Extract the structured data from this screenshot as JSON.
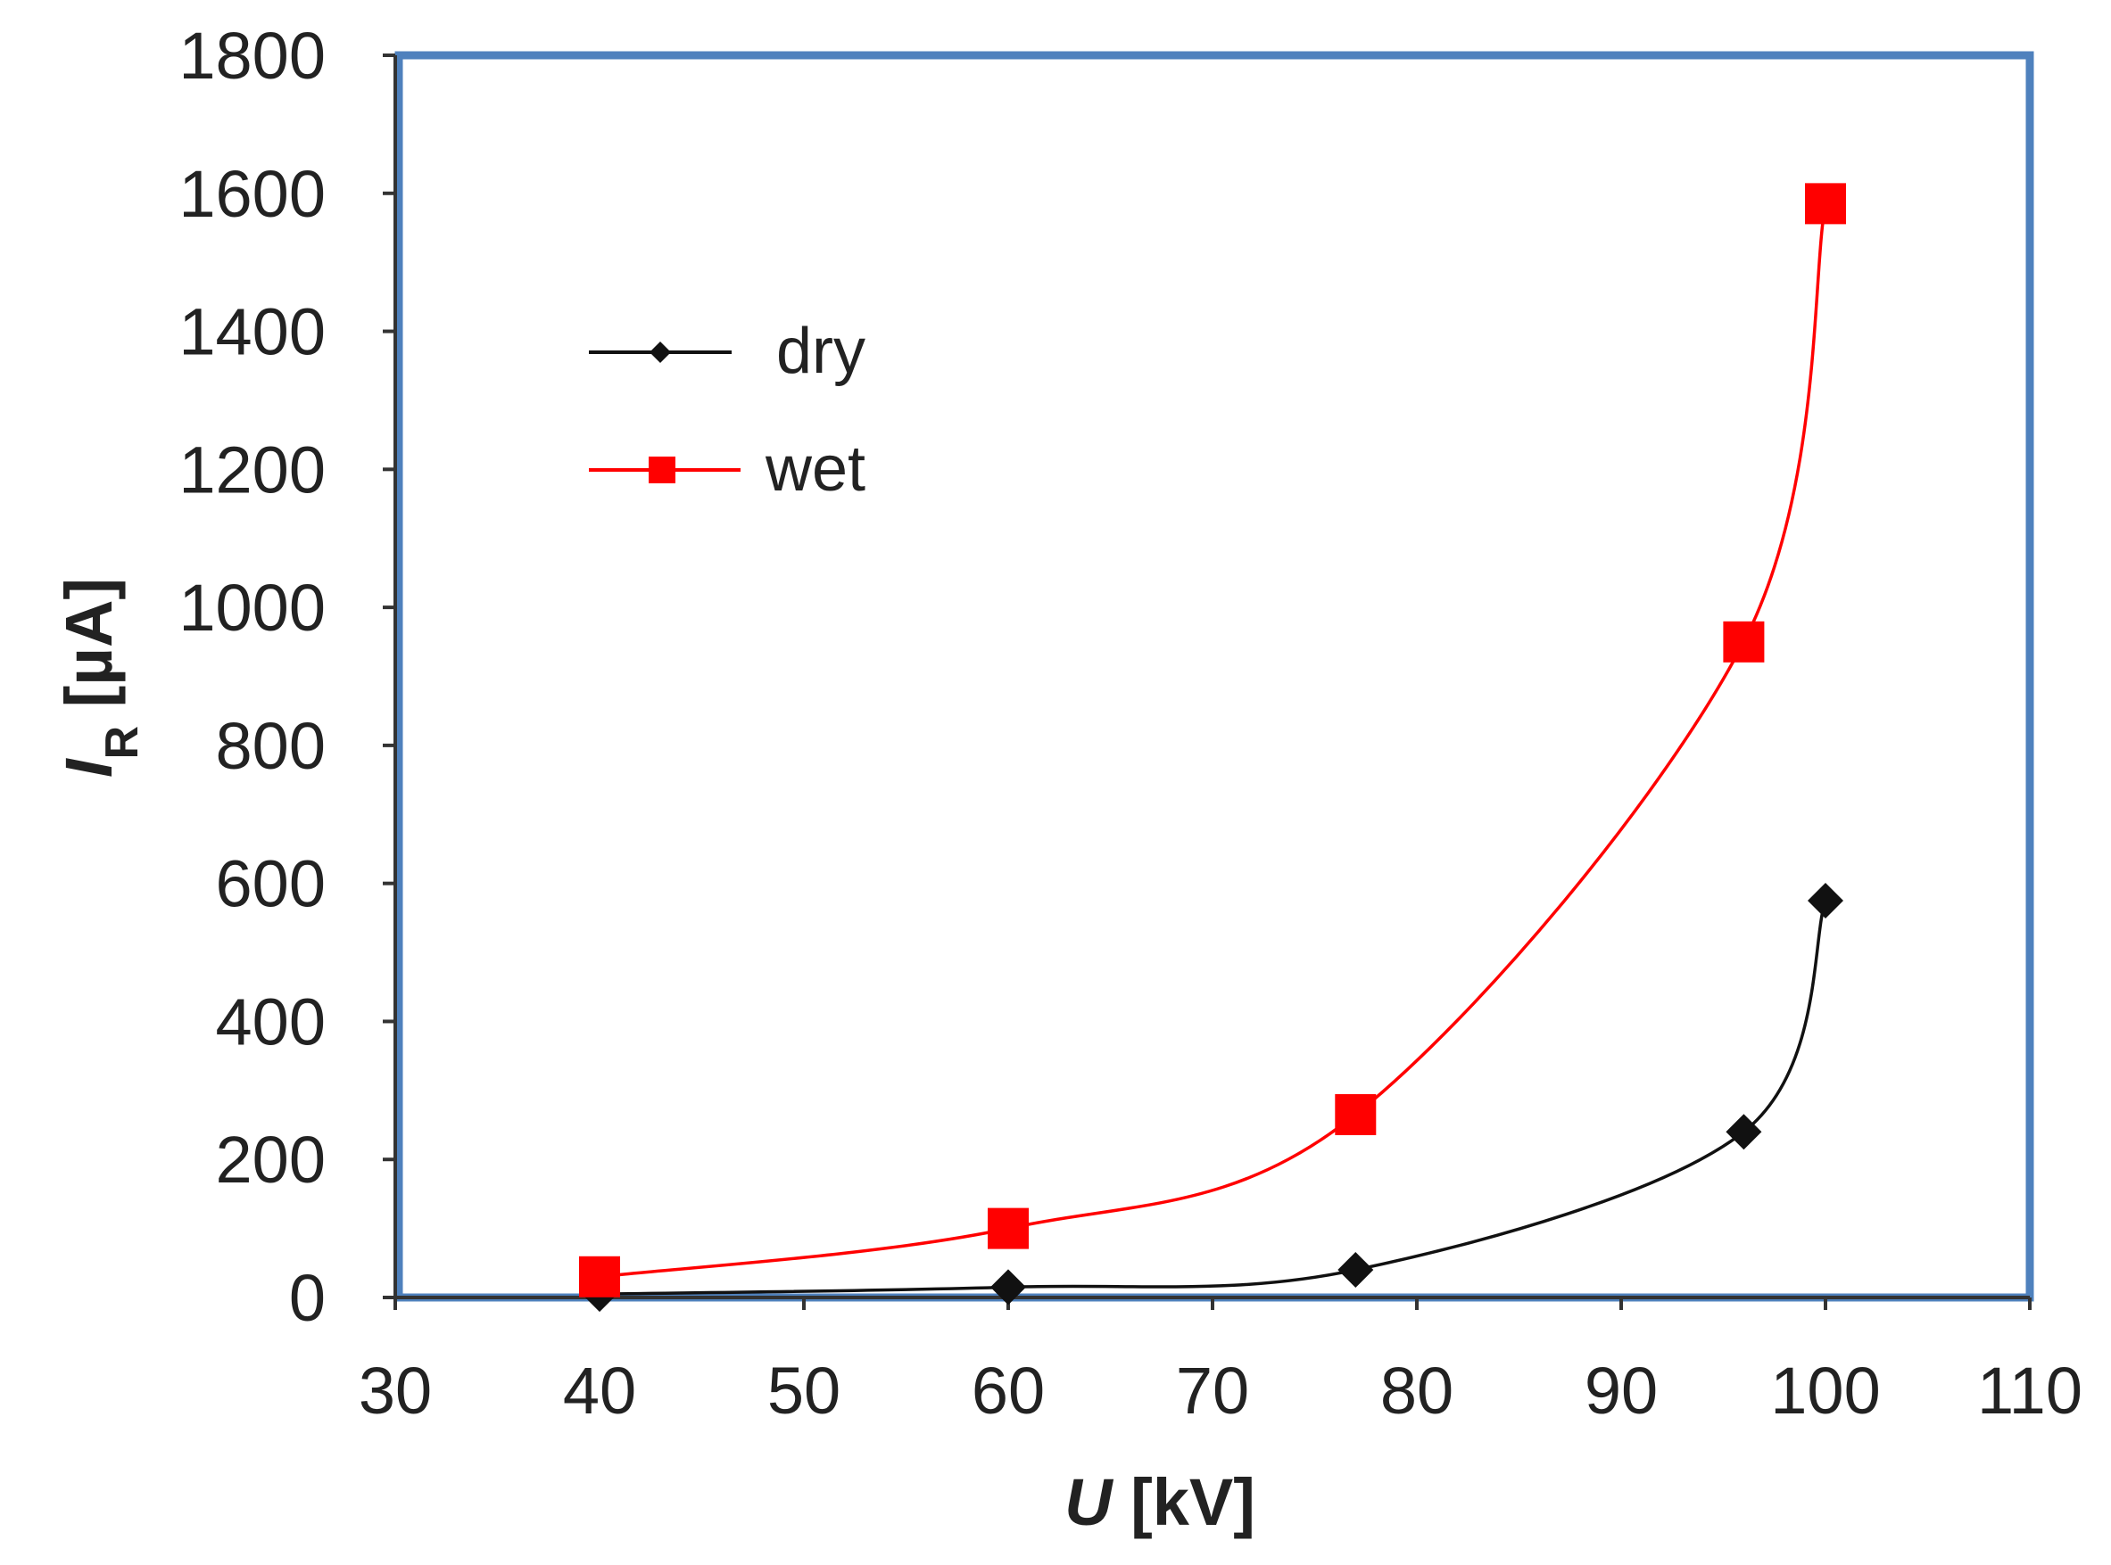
{
  "chart_data": {
    "type": "line",
    "title": "",
    "xlabel": {
      "symbol": "U",
      "unit": " [kV]"
    },
    "ylabel": {
      "symbol": "I",
      "subscript": "R",
      "unit": " [µA]"
    },
    "xlim": [
      30,
      110
    ],
    "ylim": [
      0,
      1800
    ],
    "xticks": [
      "30",
      "40",
      "50",
      "60",
      "70",
      "80",
      "90",
      "100",
      "110"
    ],
    "yticks": [
      "0",
      "200",
      "400",
      "600",
      "800",
      "1000",
      "1200",
      "1400",
      "1600",
      "1800"
    ],
    "grid": false,
    "legend_position": "top-left",
    "series": [
      {
        "name": "dry",
        "color": "#111111",
        "marker": "diamond",
        "x": [
          40,
          60,
          77,
          96,
          100
        ],
        "y": [
          5,
          15,
          40,
          240,
          575
        ]
      },
      {
        "name": "wet",
        "color": "#ff0000",
        "marker": "square",
        "x": [
          40,
          60,
          77,
          96,
          100
        ],
        "y": [
          30,
          100,
          265,
          950,
          1585
        ]
      }
    ],
    "frame_color": "#4f81bd"
  }
}
